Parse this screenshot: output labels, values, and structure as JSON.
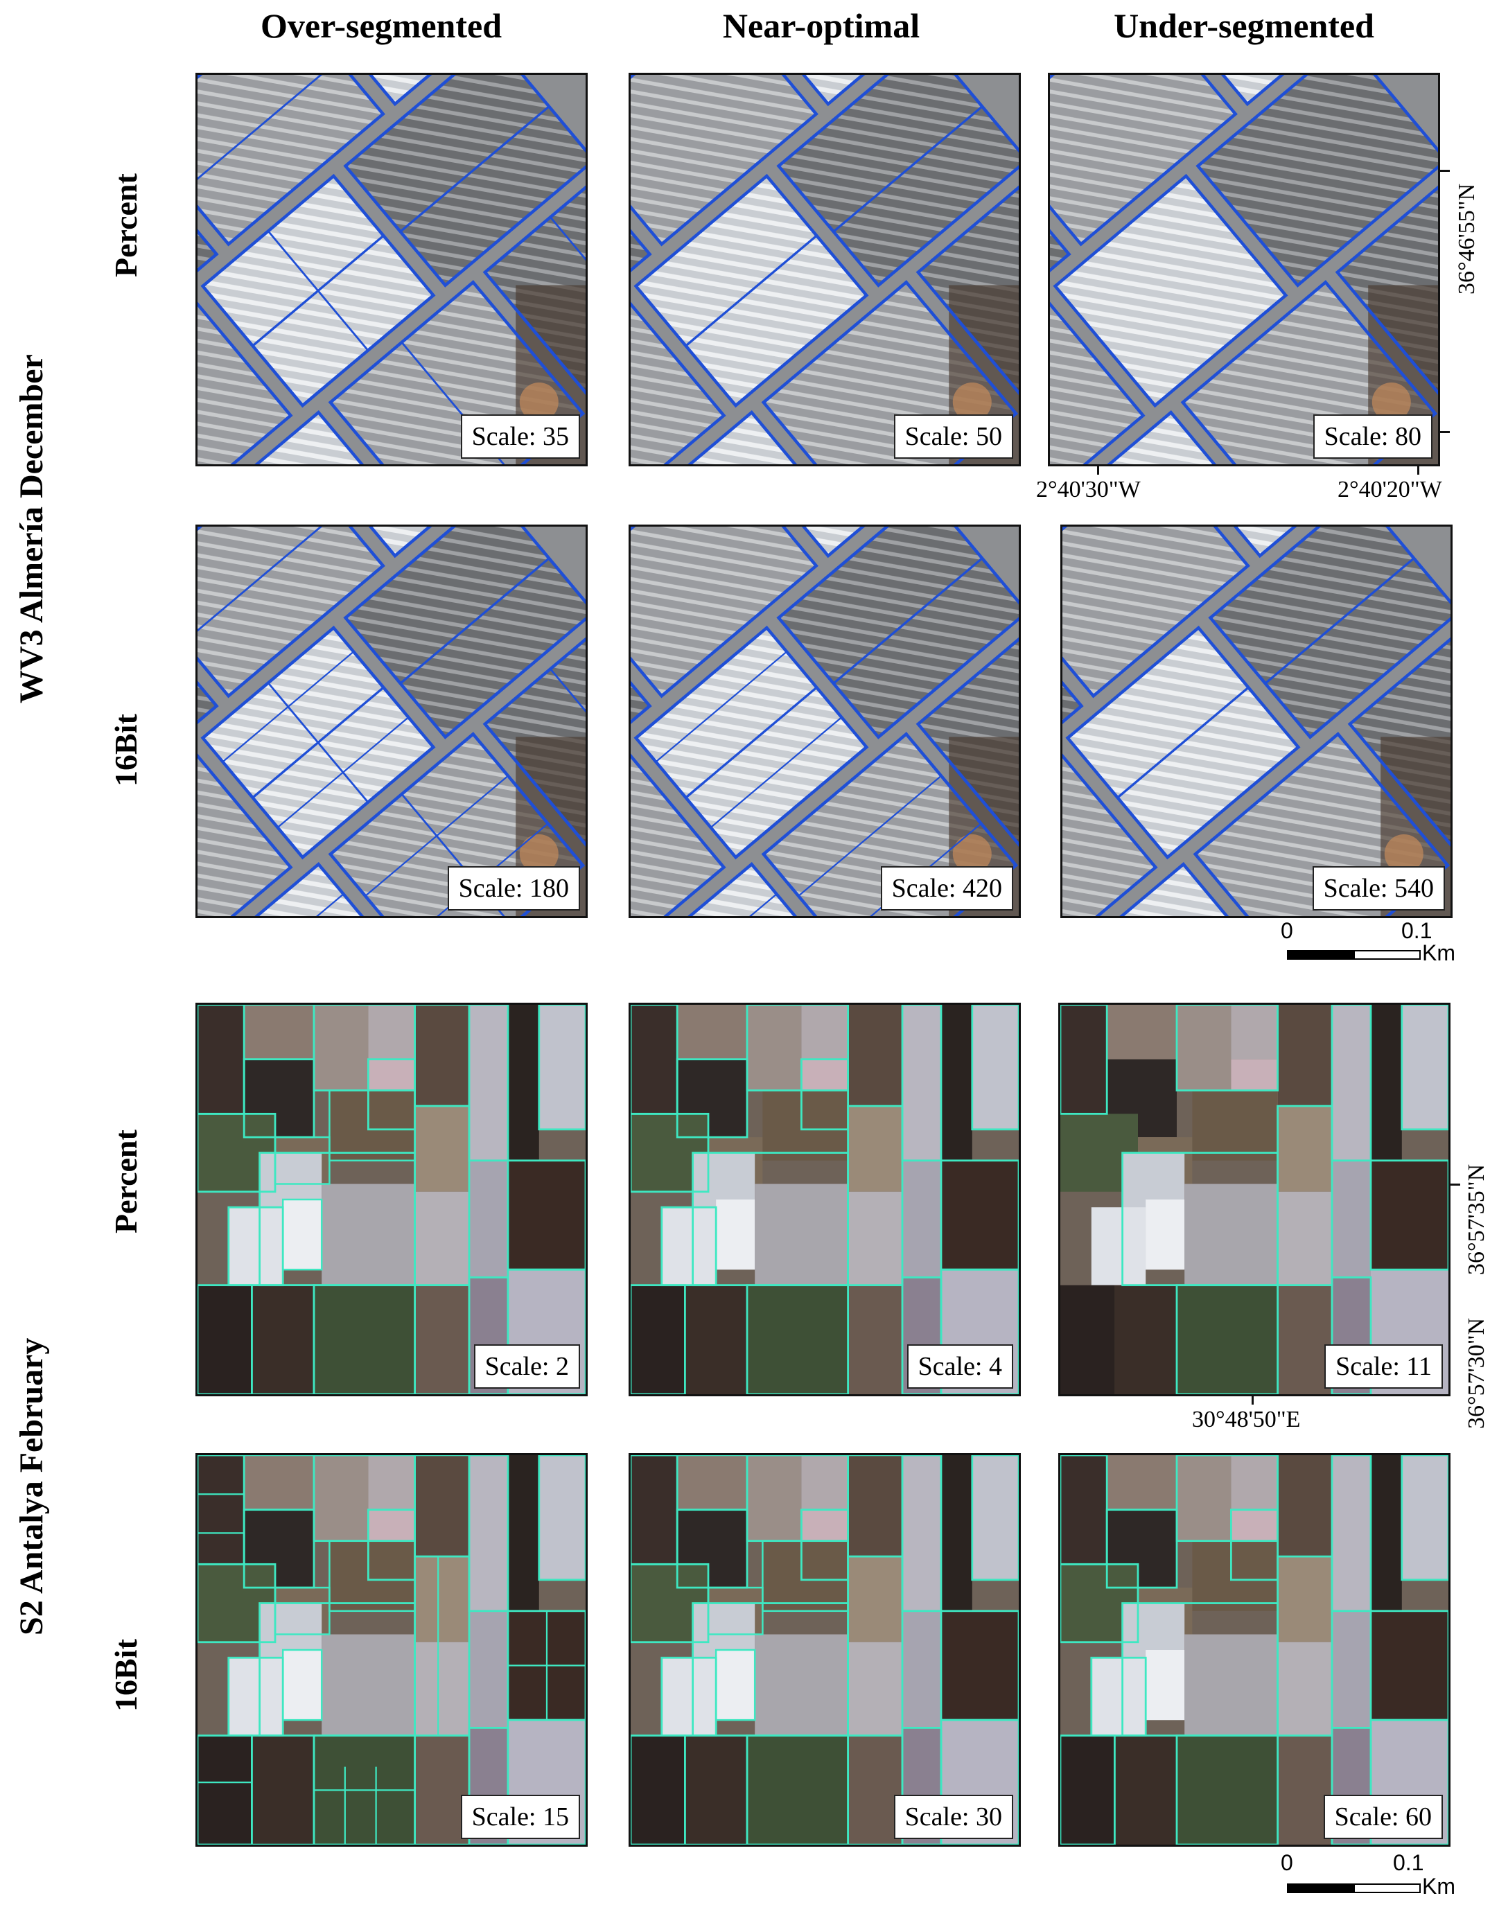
{
  "columns": {
    "c1": "Over-segmented",
    "c2": "Near-optimal",
    "c3": "Under-segmented"
  },
  "groups": {
    "g1": "WV3 Almería December",
    "g2": "S2 Antalya February"
  },
  "rows": {
    "r1": "Percent",
    "r2": "16Bit",
    "r3": "Percent",
    "r4": "16Bit"
  },
  "scales": {
    "s11": "Scale: 35",
    "s12": "Scale: 50",
    "s13": "Scale: 80",
    "s21": "Scale: 180",
    "s22": "Scale: 420",
    "s23": "Scale: 540",
    "s31": "Scale: 2",
    "s32": "Scale: 4",
    "s33": "Scale: 11",
    "s41": "Scale: 15",
    "s42": "Scale: 30",
    "s43": "Scale: 60"
  },
  "coords": {
    "wv3_lat": "36°46'55\"N",
    "wv3_lon1": "2°40'30\"W",
    "wv3_lon2": "2°40'20\"W",
    "s2_lat1": "36°57'35\"N",
    "s2_lat2": "36°57'30\"N",
    "s2_lon": "30°48'50\"E"
  },
  "scalebar": {
    "zero": "0",
    "max": "0.1",
    "unit": "Km"
  },
  "colors": {
    "wv3_outline": "#1f4fd6",
    "s2_outline": "#3ee8c2"
  }
}
